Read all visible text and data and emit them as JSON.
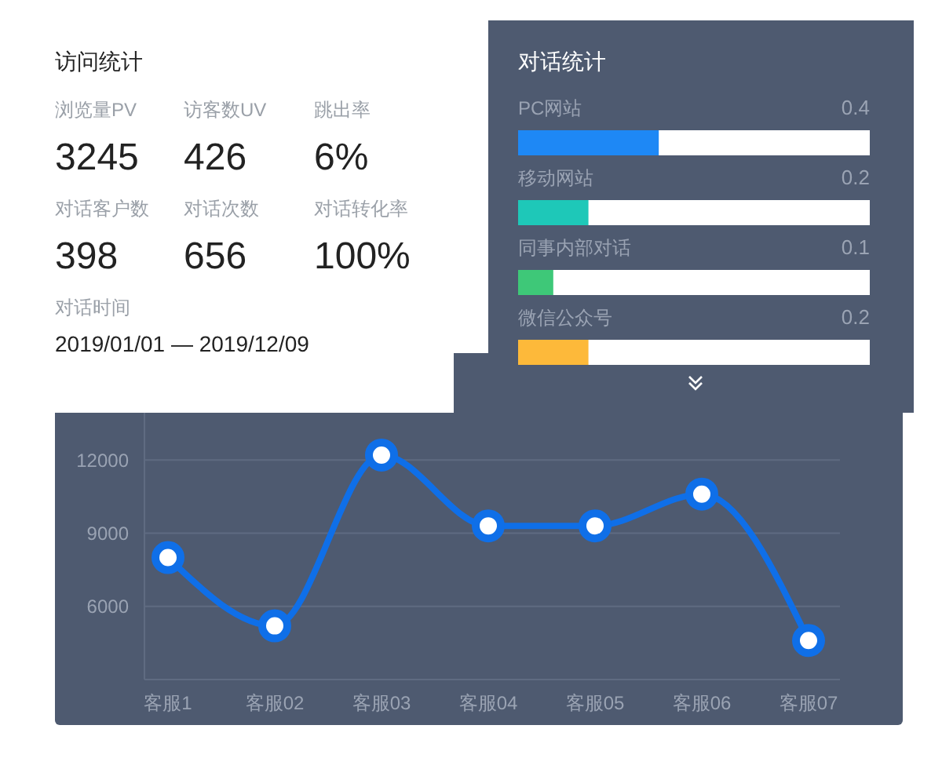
{
  "chart_data": [
    {
      "type": "other",
      "title": "访问统计",
      "annotations": [
        "浏览量PV",
        "3245",
        "访客数UV",
        "426",
        "跳出率",
        "6%",
        "对话客户数",
        "398",
        "对话次数",
        "656",
        "对话转化率",
        "100%",
        "对话时间",
        "2019/01/01 — 2019/12/09"
      ]
    },
    {
      "type": "bar",
      "orientation": "horizontal",
      "title": "对话统计",
      "categories": [
        "PC网站",
        "移动网站",
        "同事内部对话",
        "微信公众号"
      ],
      "values": [
        0.4,
        0.2,
        0.1,
        0.2
      ],
      "colors": [
        "#1e88f5",
        "#1ec8b8",
        "#3ec878",
        "#fdb93a"
      ],
      "xlim": [
        0,
        1
      ],
      "data_labels": true
    },
    {
      "type": "line",
      "categories": [
        "客服1",
        "客服02",
        "客服03",
        "客服04",
        "客服05",
        "客服06",
        "客服07"
      ],
      "series": [
        {
          "color": "#0f6fe8",
          "values": [
            8000,
            5200,
            12200,
            9300,
            9300,
            10600,
            4600
          ]
        }
      ],
      "ylim": [
        3000,
        14000
      ],
      "yticks": [
        {
          "value": 3000,
          "label": null
        },
        6000,
        9000,
        12000
      ],
      "grid": "y",
      "marker": "circle"
    }
  ]
}
